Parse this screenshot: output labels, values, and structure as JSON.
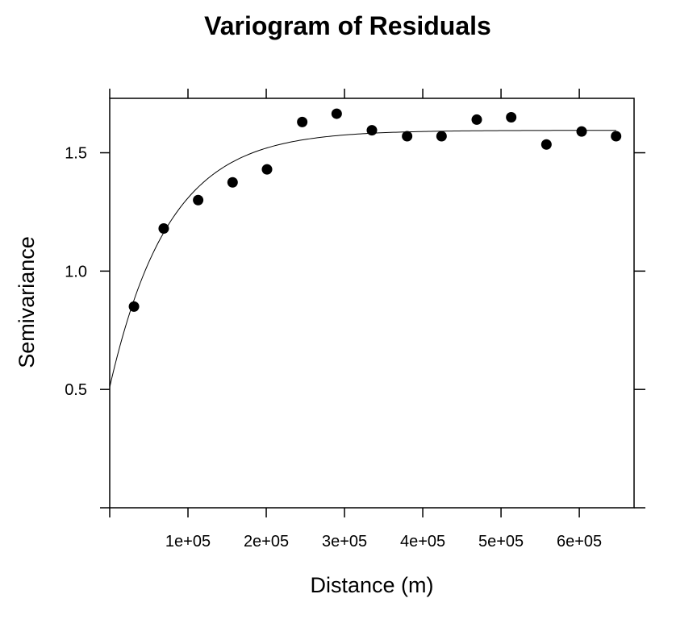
{
  "chart_data": {
    "type": "scatter",
    "title": "Variogram of Residuals",
    "xlabel": "Distance (m)",
    "ylabel": "Semivariance",
    "xlim": [
      0,
      670000
    ],
    "ylim": [
      0,
      1.73
    ],
    "x_ticks": [
      {
        "value": 0,
        "label": ""
      },
      {
        "value": 100000,
        "label": "1e+05"
      },
      {
        "value": 200000,
        "label": "2e+05"
      },
      {
        "value": 300000,
        "label": "3e+05"
      },
      {
        "value": 400000,
        "label": "4e+05"
      },
      {
        "value": 500000,
        "label": "5e+05"
      },
      {
        "value": 600000,
        "label": "6e+05"
      }
    ],
    "y_ticks": [
      {
        "value": 0,
        "label": ""
      },
      {
        "value": 0.5,
        "label": "0.5"
      },
      {
        "value": 1.0,
        "label": "1.0"
      },
      {
        "value": 1.5,
        "label": "1.5"
      }
    ],
    "points": [
      {
        "x": 31000,
        "y": 0.85
      },
      {
        "x": 69000,
        "y": 1.18
      },
      {
        "x": 113000,
        "y": 1.3
      },
      {
        "x": 157000,
        "y": 1.375
      },
      {
        "x": 201000,
        "y": 1.43
      },
      {
        "x": 246000,
        "y": 1.63
      },
      {
        "x": 290000,
        "y": 1.665
      },
      {
        "x": 335000,
        "y": 1.595
      },
      {
        "x": 380000,
        "y": 1.57
      },
      {
        "x": 424000,
        "y": 1.57
      },
      {
        "x": 469000,
        "y": 1.64
      },
      {
        "x": 513000,
        "y": 1.65
      },
      {
        "x": 558000,
        "y": 1.535
      },
      {
        "x": 603000,
        "y": 1.59
      },
      {
        "x": 647000,
        "y": 1.57
      }
    ],
    "fitted_model": {
      "nugget": 0.51,
      "psill": 1.085,
      "range": 75000,
      "x_max": 647000
    },
    "grid": false,
    "colors": {
      "points": "#000000",
      "line": "#000000",
      "frame": "#000000"
    }
  }
}
